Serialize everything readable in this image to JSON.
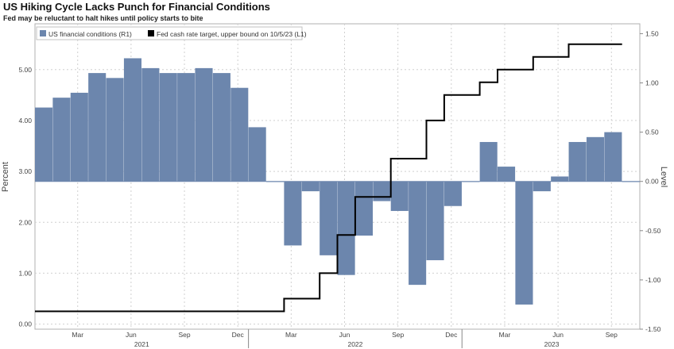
{
  "chart_data": {
    "type": "area",
    "title": "US Hiking Cycle Lacks Punch for Financial Conditions",
    "subtitle": "Fed may be reluctant to halt hikes until policy starts to bite",
    "ylabel_left": "Percent",
    "ylabel_right": "Level",
    "ylim_left": [
      -0.1,
      5.9
    ],
    "ylim_right": [
      -1.5,
      1.6
    ],
    "yticks_left": [
      "0.00",
      "1.00",
      "2.00",
      "3.00",
      "4.00",
      "5.00"
    ],
    "yticks_right": [
      "-1.50",
      "-1.00",
      "-0.50",
      "0.00",
      "0.50",
      "1.00",
      "1.50"
    ],
    "x_tick_labels": [
      "Mar",
      "Jun",
      "Sep",
      "Dec",
      "Mar",
      "Jun",
      "Sep",
      "Dec",
      "Mar",
      "Jun",
      "Sep"
    ],
    "x_year_labels": [
      "2021",
      "2022",
      "2023"
    ],
    "grid": true,
    "legend_position": "top-left",
    "colors": {
      "financial_conditions": "#6c86ad",
      "fed_funds": "#000000"
    },
    "series": [
      {
        "name": "US financial conditions (R1)",
        "axis": "right",
        "type": "area",
        "x": [
          "2021-01",
          "2021-02",
          "2021-03",
          "2021-04",
          "2021-05",
          "2021-06",
          "2021-07",
          "2021-08",
          "2021-09",
          "2021-10",
          "2021-11",
          "2021-12",
          "2022-01",
          "2022-02",
          "2022-03",
          "2022-04",
          "2022-05",
          "2022-06",
          "2022-07",
          "2022-08",
          "2022-09",
          "2022-10",
          "2022-11",
          "2022-12",
          "2023-01",
          "2023-02",
          "2023-03",
          "2023-04",
          "2023-05",
          "2023-06",
          "2023-07",
          "2023-08",
          "2023-09",
          "2023-10"
        ],
        "values": [
          0.75,
          0.85,
          0.9,
          1.1,
          1.05,
          1.25,
          1.15,
          1.1,
          1.1,
          1.15,
          1.1,
          0.95,
          0.55,
          0.0,
          -0.65,
          -0.1,
          -0.75,
          -0.95,
          -0.55,
          -0.2,
          -0.3,
          -1.05,
          -0.8,
          -0.25,
          0.0,
          0.4,
          0.15,
          -1.25,
          -0.1,
          0.05,
          0.4,
          0.45,
          0.5,
          0.0
        ]
      },
      {
        "name": "Fed cash rate target, upper bound on 10/5/23 (L1)",
        "axis": "left",
        "type": "step",
        "x": [
          "2021-01",
          "2022-03",
          "2022-05",
          "2022-06",
          "2022-07",
          "2022-09",
          "2022-11",
          "2022-12",
          "2023-02",
          "2023-03",
          "2023-05",
          "2023-07",
          "2023-10"
        ],
        "values": [
          0.25,
          0.5,
          1.0,
          1.75,
          2.5,
          3.25,
          4.0,
          4.5,
          4.75,
          5.0,
          5.25,
          5.5,
          5.5
        ]
      }
    ]
  }
}
